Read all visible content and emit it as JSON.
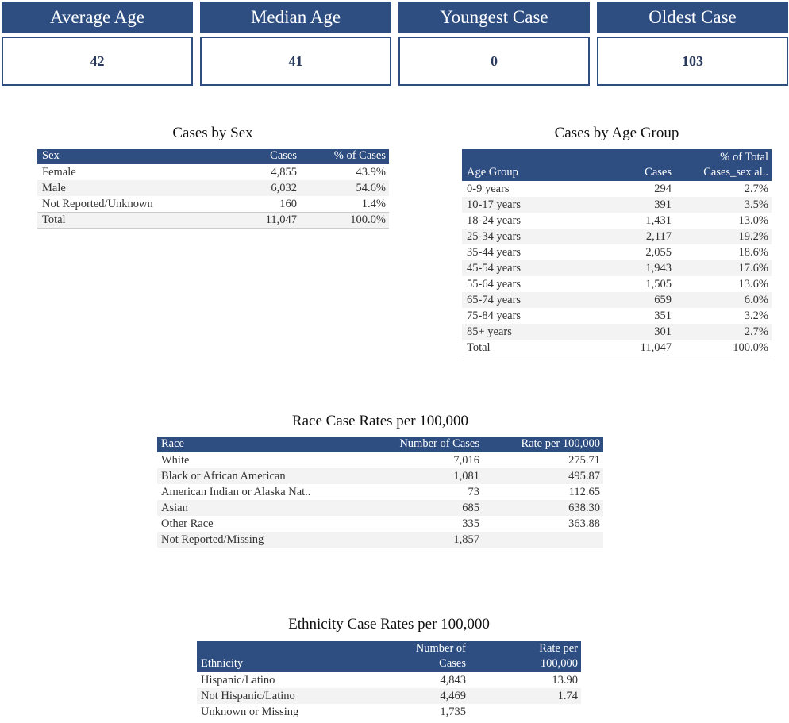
{
  "kpis": [
    {
      "label": "Average Age",
      "value": "42"
    },
    {
      "label": "Median Age",
      "value": "41"
    },
    {
      "label": "Youngest Case",
      "value": "0"
    },
    {
      "label": "Oldest Case",
      "value": "103"
    }
  ],
  "sex": {
    "title": "Cases by Sex",
    "headers": [
      "Sex",
      "Cases",
      "% of Cases"
    ],
    "rows": [
      [
        "Female",
        "4,855",
        "43.9%"
      ],
      [
        "Male",
        "6,032",
        "54.6%"
      ],
      [
        "Not Reported/Unknown",
        "160",
        "1.4%"
      ]
    ],
    "total": [
      "Total",
      "11,047",
      "100.0%"
    ]
  },
  "age": {
    "title": "Cases by Age Group",
    "headers": [
      "Age Group",
      "Cases",
      "% of Total\nCases_sex al.."
    ],
    "rows": [
      [
        "0-9 years",
        "294",
        "2.7%"
      ],
      [
        "10-17 years",
        "391",
        "3.5%"
      ],
      [
        "18-24 years",
        "1,431",
        "13.0%"
      ],
      [
        "25-34 years",
        "2,117",
        "19.2%"
      ],
      [
        "35-44 years",
        "2,055",
        "18.6%"
      ],
      [
        "45-54 years",
        "1,943",
        "17.6%"
      ],
      [
        "55-64 years",
        "1,505",
        "13.6%"
      ],
      [
        "65-74 years",
        "659",
        "6.0%"
      ],
      [
        "75-84 years",
        "351",
        "3.2%"
      ],
      [
        "85+ years",
        "301",
        "2.7%"
      ]
    ],
    "total": [
      "Total",
      "11,047",
      "100.0%"
    ]
  },
  "race": {
    "title": "Race Case Rates per 100,000",
    "headers": [
      "Race",
      "Number of Cases",
      "Rate per 100,000"
    ],
    "rows": [
      [
        "White",
        "7,016",
        "275.71"
      ],
      [
        "Black or African American",
        "1,081",
        "495.87"
      ],
      [
        "American Indian or Alaska Nat..",
        "73",
        "112.65"
      ],
      [
        "Asian",
        "685",
        "638.30"
      ],
      [
        "Other Race",
        "335",
        "363.88"
      ],
      [
        "Not Reported/Missing",
        "1,857",
        ""
      ]
    ]
  },
  "ethnicity": {
    "title": "Ethnicity Case Rates per 100,000",
    "headers": [
      "Ethnicity",
      "Number of\nCases",
      "Rate per\n100,000"
    ],
    "rows": [
      [
        "Hispanic/Latino",
        "4,843",
        "13.90"
      ],
      [
        "Not Hispanic/Latino",
        "4,469",
        "1.74"
      ],
      [
        "Unknown or Missing",
        "1,735",
        ""
      ]
    ]
  },
  "colors": {
    "header": "#2e4e82",
    "alt_row": "#f3f3f3"
  }
}
